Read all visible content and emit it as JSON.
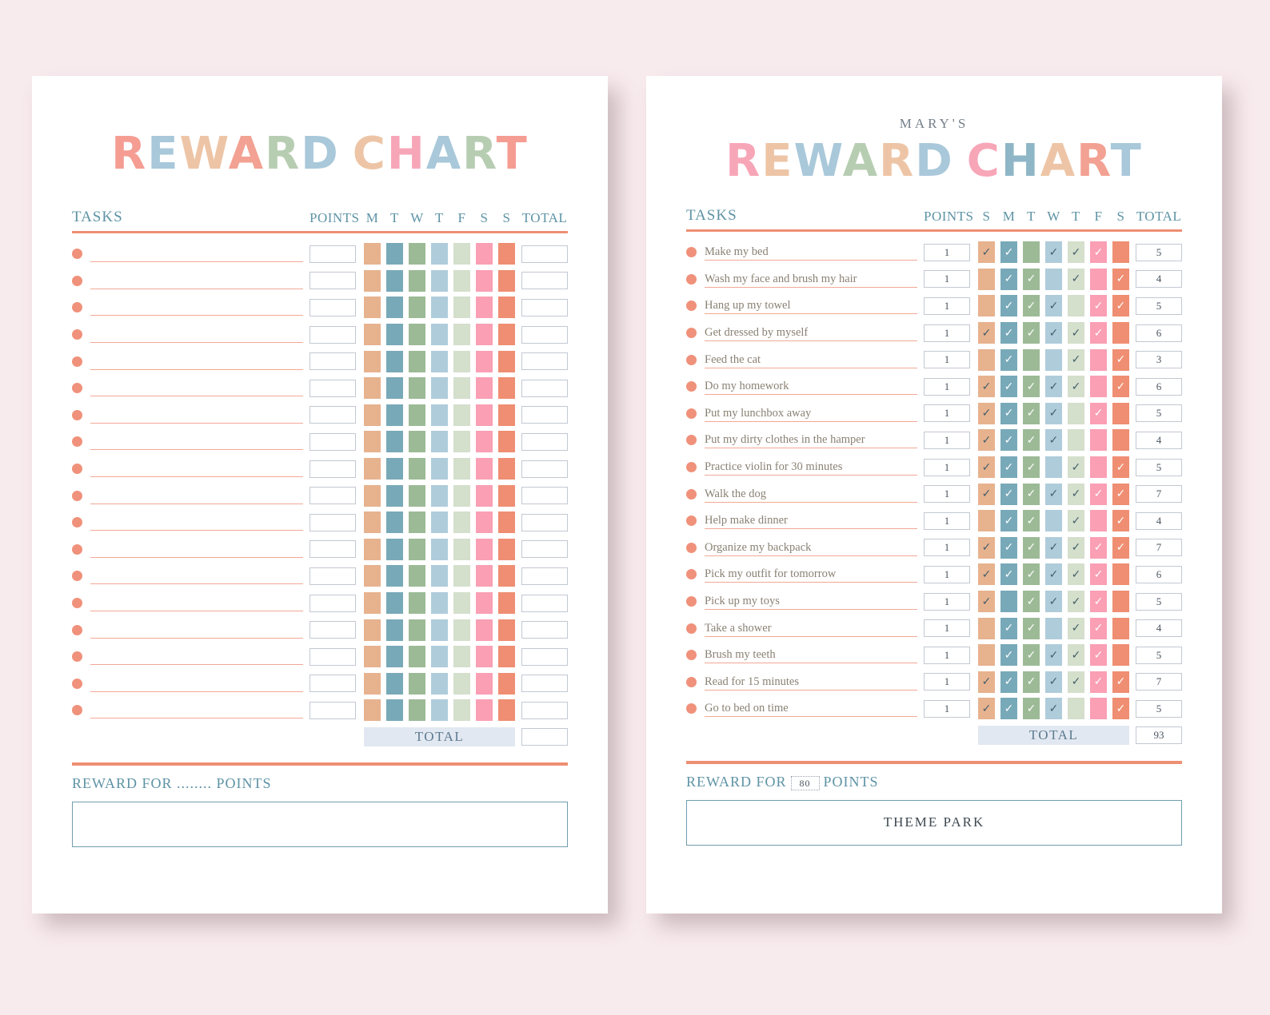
{
  "colors": {
    "background": "#f8ebee",
    "accent_line": "#ee8f73",
    "header_text": "#5e93a5",
    "task_text": "#8a8174",
    "dot": "#f0917b",
    "check_dark": "#44606a",
    "total_bar_bg": "#e2e8f1",
    "box_border": "#c2c8d2",
    "reward_box_border": "#6f9dae",
    "day_square_colors": [
      "#e7b28e",
      "#78a9b8",
      "#9cba96",
      "#afccdb",
      "#d4dfcc",
      "#fa9fb4",
      "#ef8e72"
    ],
    "check_styles": [
      "dark",
      "light",
      "light",
      "dark",
      "dark",
      "light",
      "light"
    ]
  },
  "left_page": {
    "title_letters": [
      {
        "ch": "R",
        "c": "#f59d93"
      },
      {
        "ch": "E",
        "c": "#a9c8da"
      },
      {
        "ch": "W",
        "c": "#edc5a6"
      },
      {
        "ch": "A",
        "c": "#f2a192"
      },
      {
        "ch": "R",
        "c": "#b7cdb2"
      },
      {
        "ch": "D",
        "c": "#a9c8da"
      },
      {
        "ch": " ",
        "c": ""
      },
      {
        "ch": "C",
        "c": "#edc5a6"
      },
      {
        "ch": "H",
        "c": "#f7a6b8"
      },
      {
        "ch": "A",
        "c": "#a9c8da"
      },
      {
        "ch": "R",
        "c": "#b7cdb2"
      },
      {
        "ch": "T",
        "c": "#f59d93"
      }
    ],
    "headers": {
      "tasks": "TASKS",
      "points": "POINTS",
      "days": [
        "M",
        "T",
        "W",
        "T",
        "F",
        "S",
        "S"
      ],
      "total": "TOTAL"
    },
    "row_count": 18,
    "total_label": "TOTAL",
    "total_value": "",
    "reward_line": "REWARD FOR ........ POINTS",
    "reward_text": ""
  },
  "right_page": {
    "owner": "MARY'S",
    "title_letters": [
      {
        "ch": "R",
        "c": "#f7a6b8"
      },
      {
        "ch": "E",
        "c": "#edc5a6"
      },
      {
        "ch": "W",
        "c": "#a9c8da"
      },
      {
        "ch": "A",
        "c": "#b7cdb2"
      },
      {
        "ch": "R",
        "c": "#edc5a6"
      },
      {
        "ch": "D",
        "c": "#a9c8da"
      },
      {
        "ch": " ",
        "c": ""
      },
      {
        "ch": "C",
        "c": "#f7a6b8"
      },
      {
        "ch": "H",
        "c": "#8fb6c6"
      },
      {
        "ch": "A",
        "c": "#edc5a6"
      },
      {
        "ch": "R",
        "c": "#f2a192"
      },
      {
        "ch": "T",
        "c": "#a9c8da"
      }
    ],
    "headers": {
      "tasks": "TASKS",
      "points": "POINTS",
      "days": [
        "S",
        "M",
        "T",
        "W",
        "T",
        "F",
        "S"
      ],
      "total": "TOTAL"
    },
    "tasks": [
      {
        "name": "Make my bed",
        "points": "1",
        "checks": [
          1,
          1,
          0,
          1,
          1,
          1,
          0
        ],
        "total": "5"
      },
      {
        "name": "Wash my face and brush my hair",
        "points": "1",
        "checks": [
          0,
          1,
          1,
          0,
          1,
          0,
          1
        ],
        "total": "4"
      },
      {
        "name": "Hang up my towel",
        "points": "1",
        "checks": [
          0,
          1,
          1,
          1,
          0,
          1,
          1
        ],
        "total": "5"
      },
      {
        "name": "Get dressed by myself",
        "points": "1",
        "checks": [
          1,
          1,
          1,
          1,
          1,
          1,
          0
        ],
        "total": "6"
      },
      {
        "name": "Feed the cat",
        "points": "1",
        "checks": [
          0,
          1,
          0,
          0,
          1,
          0,
          1
        ],
        "total": "3"
      },
      {
        "name": "Do my homework",
        "points": "1",
        "checks": [
          1,
          1,
          1,
          1,
          1,
          0,
          1
        ],
        "total": "6"
      },
      {
        "name": "Put my lunchbox away",
        "points": "1",
        "checks": [
          1,
          1,
          1,
          1,
          0,
          1,
          0
        ],
        "total": "5"
      },
      {
        "name": "Put my dirty clothes in the hamper",
        "points": "1",
        "checks": [
          1,
          1,
          1,
          1,
          0,
          0,
          0
        ],
        "total": "4"
      },
      {
        "name": "Practice violin for 30 minutes",
        "points": "1",
        "checks": [
          1,
          1,
          1,
          0,
          1,
          0,
          1
        ],
        "total": "5"
      },
      {
        "name": "Walk the dog",
        "points": "1",
        "checks": [
          1,
          1,
          1,
          1,
          1,
          1,
          1
        ],
        "total": "7"
      },
      {
        "name": "Help make dinner",
        "points": "1",
        "checks": [
          0,
          1,
          1,
          0,
          1,
          0,
          1
        ],
        "total": "4"
      },
      {
        "name": "Organize my backpack",
        "points": "1",
        "checks": [
          1,
          1,
          1,
          1,
          1,
          1,
          1
        ],
        "total": "7"
      },
      {
        "name": "Pick my outfit for tomorrow",
        "points": "1",
        "checks": [
          1,
          1,
          1,
          1,
          1,
          1,
          0
        ],
        "total": "6"
      },
      {
        "name": "Pick up my toys",
        "points": "1",
        "checks": [
          1,
          0,
          1,
          1,
          1,
          1,
          0
        ],
        "total": "5"
      },
      {
        "name": "Take a shower",
        "points": "1",
        "checks": [
          0,
          1,
          1,
          0,
          1,
          1,
          0
        ],
        "total": "4"
      },
      {
        "name": "Brush my teeth",
        "points": "1",
        "checks": [
          0,
          1,
          1,
          1,
          1,
          1,
          0
        ],
        "total": "5"
      },
      {
        "name": "Read for 15 minutes",
        "points": "1",
        "checks": [
          1,
          1,
          1,
          1,
          1,
          1,
          1
        ],
        "total": "7"
      },
      {
        "name": "Go to bed on time",
        "points": "1",
        "checks": [
          1,
          1,
          1,
          1,
          0,
          0,
          1
        ],
        "total": "5"
      }
    ],
    "total_label": "TOTAL",
    "total_value": "93",
    "reward_prefix": "REWARD FOR",
    "reward_points": "80",
    "reward_suffix": "POINTS",
    "reward_text": "THEME PARK"
  }
}
